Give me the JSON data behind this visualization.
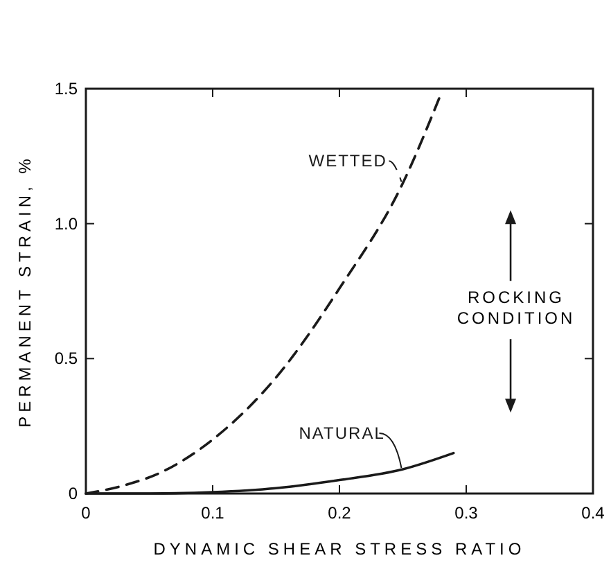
{
  "chart_data": {
    "type": "line",
    "xlabel": "DYNAMIC SHEAR STRESS RATIO",
    "ylabel": "PERMANENT STRAIN, %",
    "xlim": [
      0,
      0.4
    ],
    "ylim": [
      0,
      1.5
    ],
    "xticks": [
      0,
      0.1,
      0.2,
      0.3,
      0.4
    ],
    "yticks": [
      0,
      0.5,
      {
        "value": 1,
        "label": "1.0"
      },
      {
        "value": 1.5,
        "label": "1.5"
      }
    ],
    "series": [
      {
        "name": "WETTED",
        "color": "#1a1a1a",
        "line_style": "dashed",
        "x": [
          0,
          0.03,
          0.06,
          0.1,
          0.15,
          0.2,
          0.25,
          0.28
        ],
        "values": [
          0,
          0.03,
          0.08,
          0.2,
          0.43,
          0.76,
          1.15,
          1.48
        ]
      },
      {
        "name": "NATURAL",
        "color": "#1a1a1a",
        "line_style": "solid",
        "x": [
          0,
          0.05,
          0.1,
          0.15,
          0.2,
          0.25,
          0.29
        ],
        "values": [
          0,
          0,
          0.005,
          0.02,
          0.05,
          0.09,
          0.15
        ]
      }
    ],
    "annotations": [
      "ROCKING CONDITION"
    ]
  }
}
